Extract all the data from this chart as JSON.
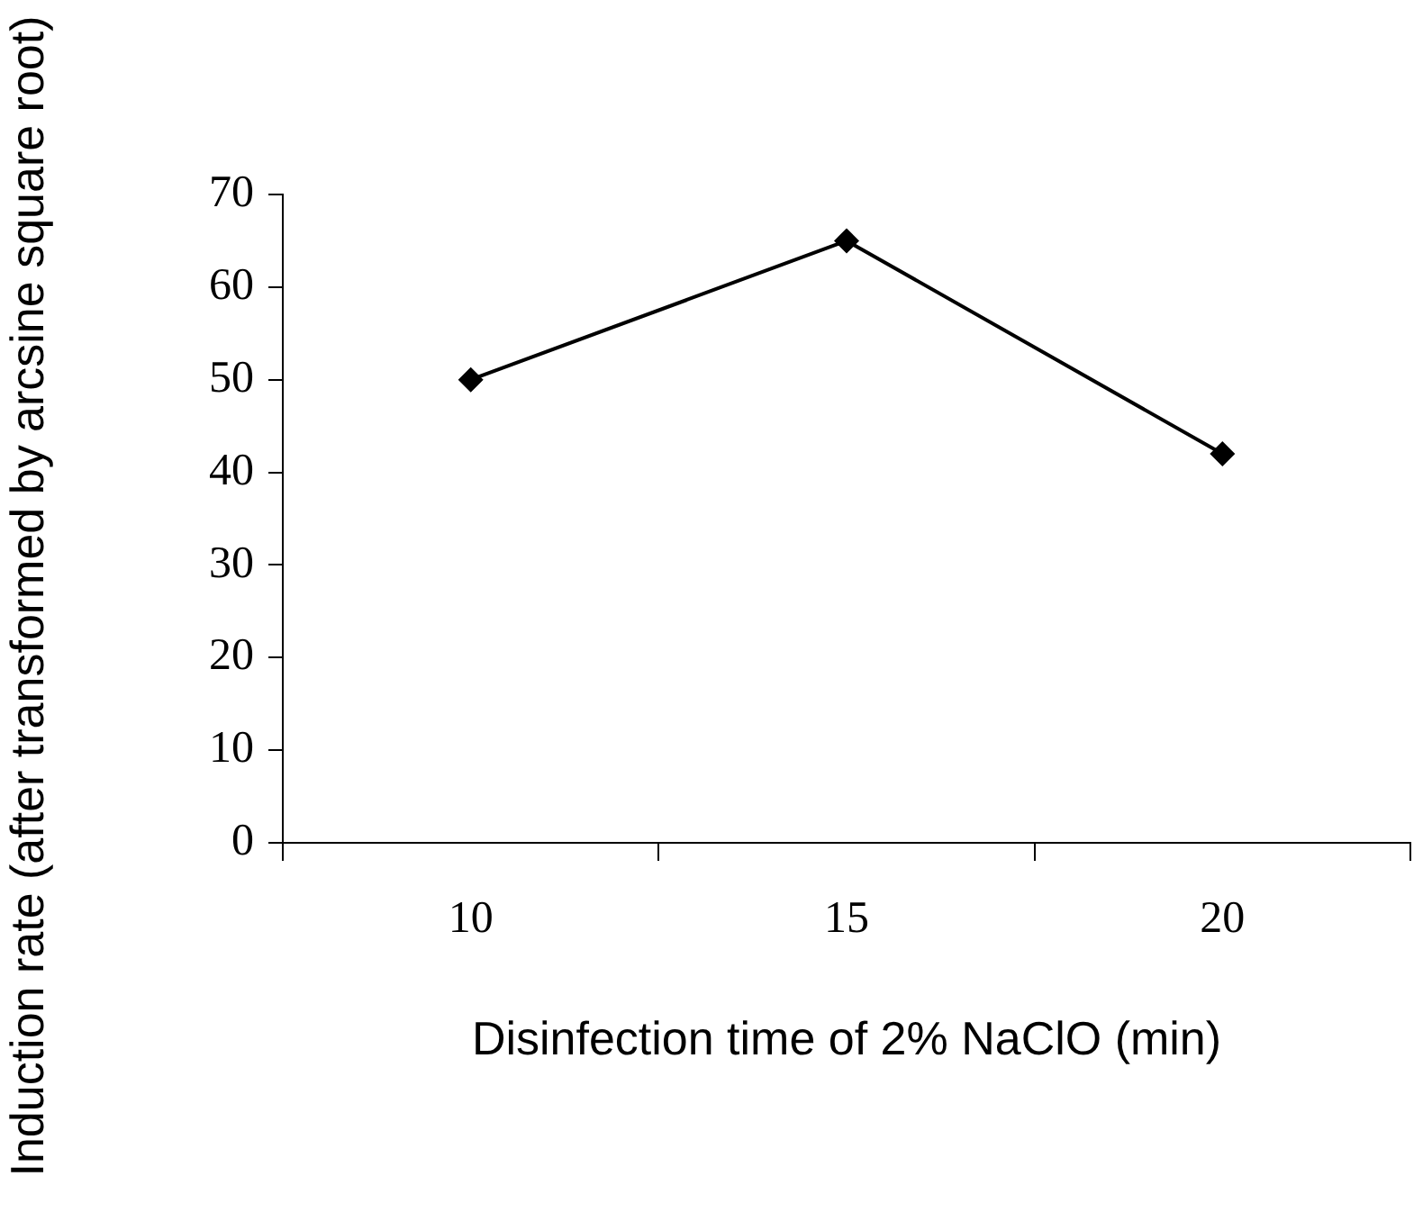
{
  "chart_data": {
    "type": "line",
    "xlabel": "Disinfection time of 2% NaClO (min)",
    "ylabel": "Induction rate (after  transformed by arcsine square root)",
    "categories": [
      "10",
      "15",
      "20"
    ],
    "series": [
      {
        "color": "#000000",
        "values": [
          50,
          65,
          42
        ]
      }
    ],
    "ylim": [
      0,
      70
    ],
    "yticks": [
      0,
      10,
      20,
      30,
      40,
      50,
      60,
      70
    ],
    "grid": false,
    "legend": false,
    "marker": "diamond",
    "line_style": "solid"
  }
}
